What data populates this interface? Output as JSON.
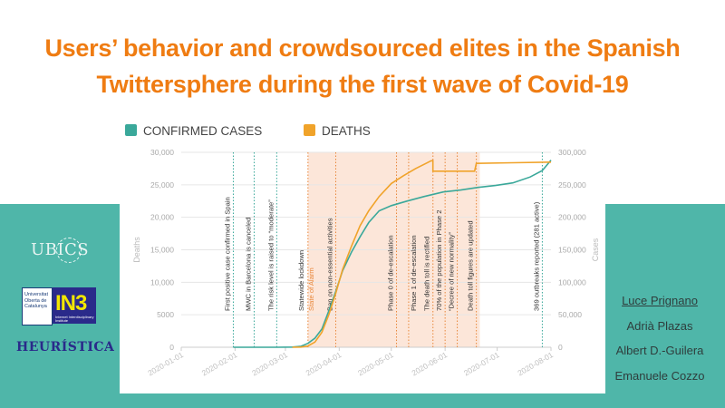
{
  "slide": {
    "title_line1": "Users’ behavior and crowdsourced elites in the Spanish",
    "title_line2": "Twittersphere during the first wave of Covid-19"
  },
  "logos": {
    "ubics": "UBICS",
    "uoc_text": "Universitat Oberta de Catalunya",
    "in3": "IN3",
    "in3_sub": "Internet Interdisciplinary Institute",
    "heuristica": "HEURÍSTICA"
  },
  "authors": [
    "Luce Prignano",
    "Adrià Plazas",
    "Albert D.-Guilera",
    "Emanuele Cozzo"
  ],
  "colors": {
    "title": "#ef7c12",
    "teal": "#4fb6a9",
    "confirmed": "#3aa89a",
    "deaths": "#f0a32a",
    "shade": "#fbe0cf"
  },
  "chart_data": {
    "type": "line",
    "legend": [
      "CONFIRMED CASES",
      "DEATHS"
    ],
    "legend_position": "top-left",
    "ylabel_left": "Deaths",
    "ylabel_right": "Cases",
    "x_range": [
      "2020-01-01",
      "2020-08-01"
    ],
    "x_ticks": [
      "2020-01-01",
      "2020-02-01",
      "2020-03-01",
      "2020-04-01",
      "2020-05-01",
      "2020-06-01",
      "2020-07-01",
      "2020-08-01"
    ],
    "y_left_range": [
      0,
      30000
    ],
    "y_left_ticks": [
      "0",
      "5000",
      "10,000",
      "15,000",
      "20,000",
      "25,000",
      "30,000"
    ],
    "y_right_range": [
      0,
      300000
    ],
    "y_right_ticks": [
      "0",
      "50,000",
      "100,000",
      "150,000",
      "200,000",
      "250,000",
      "300,000"
    ],
    "grid": true,
    "shaded_period": [
      "2020-03-14",
      "2020-06-21"
    ],
    "series": [
      {
        "name": "CONFIRMED CASES",
        "axis": "right",
        "points": [
          [
            "2020-01-31",
            0
          ],
          [
            "2020-02-25",
            0
          ],
          [
            "2020-03-05",
            300
          ],
          [
            "2020-03-10",
            1500
          ],
          [
            "2020-03-14",
            6000
          ],
          [
            "2020-03-18",
            14000
          ],
          [
            "2020-03-22",
            28000
          ],
          [
            "2020-03-26",
            56000
          ],
          [
            "2020-03-30",
            86000
          ],
          [
            "2020-04-03",
            118000
          ],
          [
            "2020-04-08",
            146000
          ],
          [
            "2020-04-13",
            170000
          ],
          [
            "2020-04-18",
            192000
          ],
          [
            "2020-04-24",
            210000
          ],
          [
            "2020-05-01",
            218000
          ],
          [
            "2020-05-10",
            225000
          ],
          [
            "2020-05-20",
            232000
          ],
          [
            "2020-05-31",
            239000
          ],
          [
            "2020-06-10",
            242000
          ],
          [
            "2020-06-20",
            246000
          ],
          [
            "2020-06-30",
            249000
          ],
          [
            "2020-07-10",
            253000
          ],
          [
            "2020-07-20",
            262000
          ],
          [
            "2020-07-27",
            272000
          ],
          [
            "2020-08-01",
            288000
          ]
        ]
      },
      {
        "name": "DEATHS",
        "axis": "left",
        "points": [
          [
            "2020-03-05",
            0
          ],
          [
            "2020-03-10",
            30
          ],
          [
            "2020-03-14",
            200
          ],
          [
            "2020-03-18",
            800
          ],
          [
            "2020-03-22",
            2300
          ],
          [
            "2020-03-26",
            5000
          ],
          [
            "2020-03-30",
            8300
          ],
          [
            "2020-04-03",
            12000
          ],
          [
            "2020-04-08",
            15500
          ],
          [
            "2020-04-13",
            18700
          ],
          [
            "2020-04-18",
            21000
          ],
          [
            "2020-04-24",
            23200
          ],
          [
            "2020-05-01",
            25200
          ],
          [
            "2020-05-08",
            26400
          ],
          [
            "2020-05-15",
            27500
          ],
          [
            "2020-05-21",
            28300
          ],
          [
            "2020-05-24",
            28700
          ],
          [
            "2020-05-25",
            28700
          ],
          [
            "2020-05-25",
            27100
          ],
          [
            "2020-06-18",
            27100
          ],
          [
            "2020-06-19",
            28300
          ],
          [
            "2020-07-10",
            28400
          ],
          [
            "2020-08-01",
            28500
          ]
        ]
      }
    ],
    "annotations": [
      {
        "date": "2020-01-31",
        "label": "First positive case confirmed in Spain",
        "style": "teal"
      },
      {
        "date": "2020-02-12",
        "label": "MWC in Barcelona is canceled",
        "style": "teal"
      },
      {
        "date": "2020-02-25",
        "label": "The risk level is raised to “moderate”",
        "style": "teal"
      },
      {
        "date": "2020-03-14",
        "label": "Statewide lockdown",
        "style": "orange"
      },
      {
        "date": "2020-03-14",
        "label": "State of Alarm",
        "style": "orange-text"
      },
      {
        "date": "2020-03-30",
        "label": "Ban on non-essential activities",
        "style": "orange"
      },
      {
        "date": "2020-05-04",
        "label": "Phase 0 of de-escalation",
        "style": "orange"
      },
      {
        "date": "2020-05-11",
        "label": "Phase 1 of de-escalation",
        "style": "orange"
      },
      {
        "date": "2020-05-25",
        "label": "The death toll is rectified",
        "style": "orange"
      },
      {
        "date": "2020-06-01",
        "label": "70% of the population in Phase 2",
        "style": "orange"
      },
      {
        "date": "2020-06-08",
        "label": "“Decree of new normality”",
        "style": "orange"
      },
      {
        "date": "2020-06-19",
        "label": "Death toll figures are updated",
        "style": "orange"
      },
      {
        "date": "2020-07-27",
        "label": "369 outbreaks reported (281 active)",
        "style": "teal"
      }
    ]
  }
}
